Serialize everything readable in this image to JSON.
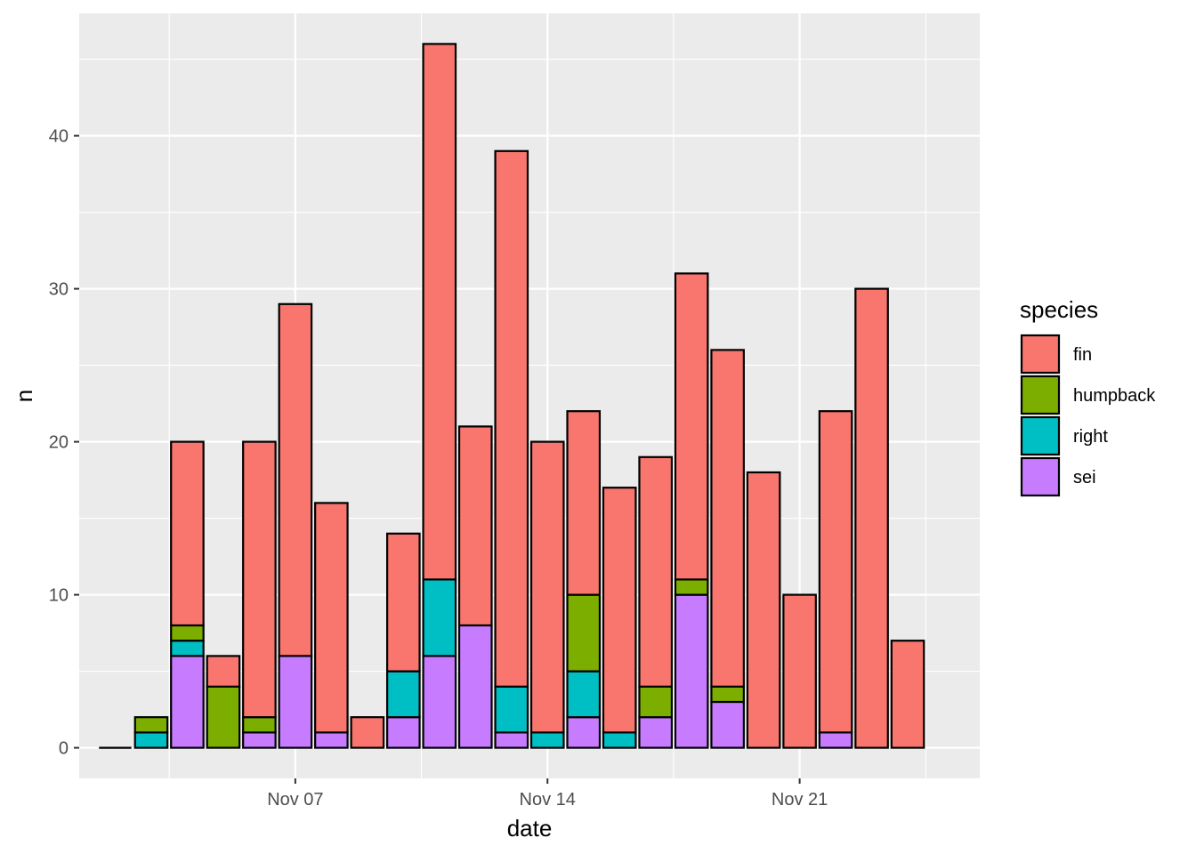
{
  "chart_data": {
    "type": "bar",
    "stacked": true,
    "xlabel": "date",
    "ylabel": "n",
    "ylim": [
      -2,
      48
    ],
    "yticks": [
      0,
      10,
      20,
      30,
      40
    ],
    "xlim": [
      "2024-11-01",
      "2024-11-26"
    ],
    "xticks": [
      {
        "date": "2024-11-07",
        "label": "Nov 07"
      },
      {
        "date": "2024-11-14",
        "label": "Nov 14"
      },
      {
        "date": "2024-11-21",
        "label": "Nov 21"
      }
    ],
    "x": [
      "2024-11-02",
      "2024-11-03",
      "2024-11-04",
      "2024-11-05",
      "2024-11-06",
      "2024-11-07",
      "2024-11-08",
      "2024-11-09",
      "2024-11-10",
      "2024-11-11",
      "2024-11-12",
      "2024-11-13",
      "2024-11-14",
      "2024-11-15",
      "2024-11-16",
      "2024-11-17",
      "2024-11-18",
      "2024-11-19",
      "2024-11-20",
      "2024-11-21",
      "2024-11-22",
      "2024-11-23",
      "2024-11-24"
    ],
    "series": [
      {
        "name": "fin",
        "color": "#F8766D",
        "values": [
          0,
          0,
          12,
          2,
          18,
          23,
          15,
          2,
          9,
          35,
          13,
          35,
          19,
          12,
          16,
          15,
          20,
          22,
          18,
          10,
          21,
          30,
          7
        ]
      },
      {
        "name": "humpback",
        "color": "#7CAE00",
        "values": [
          0,
          1,
          1,
          4,
          1,
          0,
          0,
          0,
          0,
          0,
          0,
          0,
          0,
          5,
          0,
          2,
          1,
          1,
          0,
          0,
          0,
          0,
          0
        ]
      },
      {
        "name": "right",
        "color": "#00BFC4",
        "values": [
          0,
          1,
          1,
          0,
          0,
          0,
          0,
          0,
          3,
          5,
          0,
          3,
          1,
          3,
          1,
          0,
          0,
          0,
          0,
          0,
          0,
          0,
          0
        ]
      },
      {
        "name": "sei",
        "color": "#C77CFF",
        "values": [
          0,
          0,
          6,
          0,
          1,
          6,
          1,
          0,
          2,
          6,
          8,
          1,
          0,
          2,
          0,
          2,
          10,
          3,
          0,
          0,
          1,
          0,
          0
        ]
      }
    ],
    "grid": true,
    "legend": {
      "title": "species",
      "position": "right"
    },
    "colors": {
      "panel": "#EBEBEB",
      "grid": "#FFFFFF",
      "bar_outline": "#000000",
      "tick_text": "#4D4D4D"
    }
  }
}
